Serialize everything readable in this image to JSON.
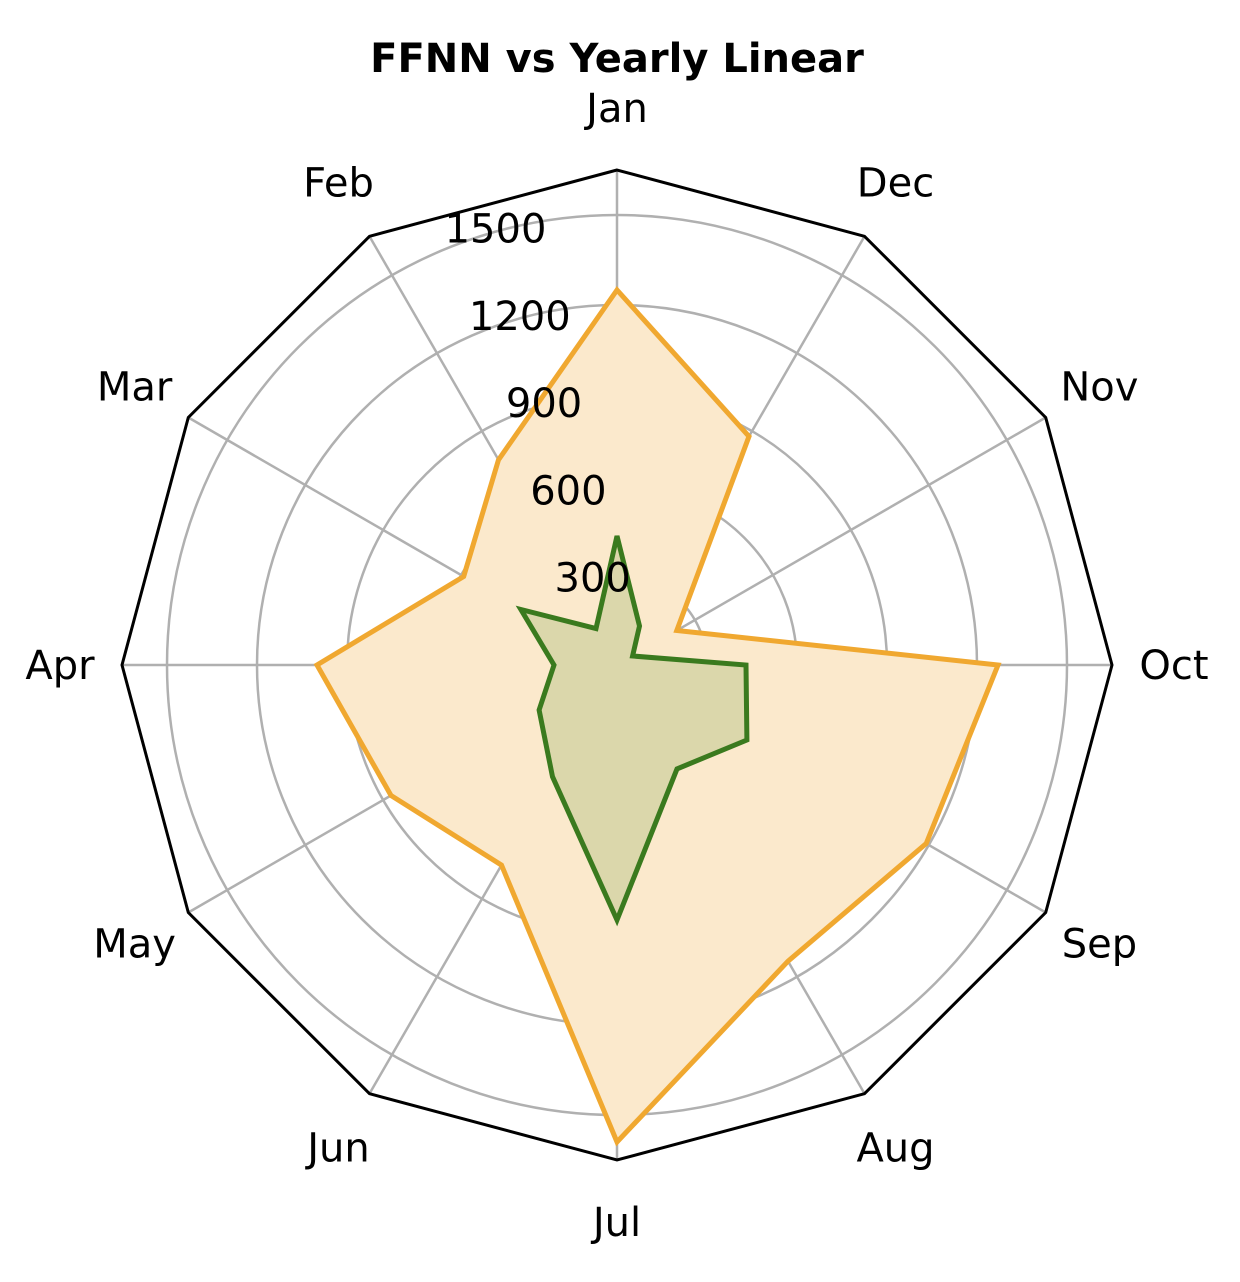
{
  "chart_data": {
    "type": "radar",
    "title": "FFNN vs Yearly Linear",
    "categories": [
      "Jan",
      "Feb",
      "Mar",
      "Apr",
      "May",
      "Jun",
      "Jul",
      "Aug",
      "Sep",
      "Oct",
      "Nov",
      "Dec"
    ],
    "radial_ticks": [
      300,
      600,
      900,
      1200,
      1500
    ],
    "rmax": 1650,
    "series": [
      {
        "values": [
          1250,
          790,
          590,
          1000,
          870,
          770,
          1590,
          1140,
          1190,
          1270,
          230,
          880
        ],
        "color": "#f0a830",
        "fill": "#fbe9cc"
      },
      {
        "values": [
          430,
          140,
          370,
          210,
          300,
          430,
          850,
          400,
          500,
          430,
          60,
          150
        ],
        "color": "#3a7a1e",
        "fill": "#d5d4a4"
      }
    ],
    "grid": true,
    "frame": "polygon"
  }
}
